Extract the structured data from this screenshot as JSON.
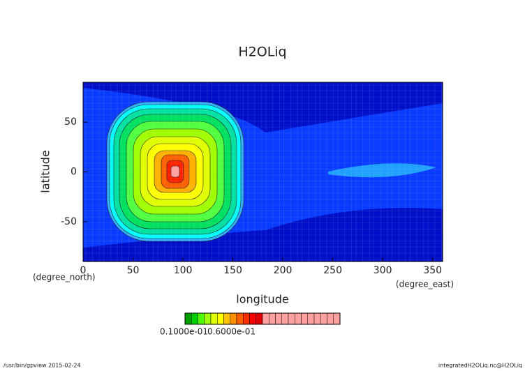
{
  "chart_data": {
    "type": "contour",
    "title": "H2OLiq",
    "xlabel": "longitude",
    "ylabel": "latitude",
    "xunit": "(degree_east)",
    "yunit": "(degree_north)",
    "xlim": [
      0,
      360
    ],
    "ylim": [
      -90,
      90
    ],
    "xticks": [
      0,
      50,
      100,
      150,
      200,
      250,
      300,
      350
    ],
    "yticks": [
      -50,
      0,
      50
    ],
    "colorbar": {
      "colors": [
        "#00a000",
        "#00d000",
        "#50ff00",
        "#a0ff00",
        "#e0ff00",
        "#ffff00",
        "#ffc000",
        "#ff9000",
        "#ff6000",
        "#ff3000",
        "#ff0000",
        "#e00000",
        "#ffa0a0",
        "#ffa0a0",
        "#ffa0a0",
        "#ffa0a0",
        "#ffa0a0",
        "#ffa0a0",
        "#ffa0a0",
        "#ffa0a0",
        "#ffa0a0",
        "#ffa0a0",
        "#ffa0a0",
        "#ffa0a0"
      ],
      "labels": [
        "0.1000e-01",
        "0.6000e-01"
      ]
    },
    "footer_left": "/usr/bin/gpview  2015-02-24",
    "footer_right": "integratedH2OLiq.nc@H2OLiq"
  }
}
